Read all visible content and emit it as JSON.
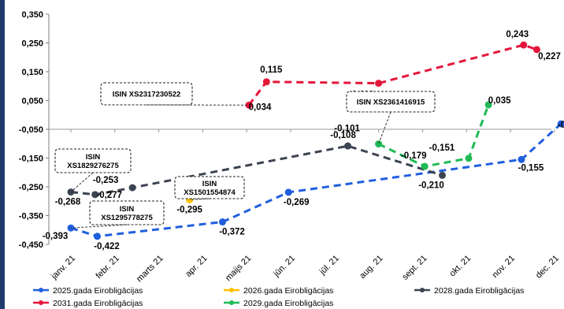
{
  "chart_data": {
    "type": "line",
    "categories": [
      "janv. 21",
      "febr. 21",
      "marts 21",
      "apr. 21",
      "maijs 21",
      "jūn. 21",
      "jūl. 21",
      "aug. 21",
      "sept. 21",
      "okt. 21",
      "nov. 21",
      "dec. 21"
    ],
    "ylim": [
      -0.45,
      0.35
    ],
    "yticks": [
      -0.45,
      -0.35,
      -0.25,
      -0.15,
      -0.05,
      0.05,
      0.15,
      0.25,
      0.35
    ],
    "ytick_labels": [
      "-0,450",
      "-0,350",
      "-0,250",
      "-0,150",
      "-0,050",
      "0,050",
      "0,150",
      "0,250",
      "0,350"
    ],
    "grid": false,
    "legend_position": "bottom",
    "series": [
      {
        "name": "2025.gada Eirobligācijas",
        "color": "#1f5fde",
        "points": [
          {
            "x": 0.0,
            "y": -0.393,
            "label": "-0,393"
          },
          {
            "x": 0.6,
            "y": -0.422,
            "label": "-0,422"
          },
          {
            "x": 3.45,
            "y": -0.372,
            "label": "-0,372"
          },
          {
            "x": 4.95,
            "y": -0.269,
            "label": "-0,269"
          },
          {
            "x": 10.25,
            "y": -0.155,
            "label": "-0,155"
          },
          {
            "x": 11.15,
            "y": -0.031,
            "label": "-0,031"
          }
        ]
      },
      {
        "name": "2026.gada Eirobligācijas",
        "color": "#ffc000",
        "points": [
          {
            "x": 2.7,
            "y": -0.295,
            "label": "-0,295"
          }
        ]
      },
      {
        "name": "2028.gada Eirobligācijas",
        "color": "#3d4451",
        "points": [
          {
            "x": 0.0,
            "y": -0.268,
            "label": "-0,268"
          },
          {
            "x": 0.55,
            "y": -0.277,
            "label": "-0,277"
          },
          {
            "x": 1.4,
            "y": -0.253,
            "label": "-0,253"
          },
          {
            "x": 6.3,
            "y": -0.108,
            "label": "-0,108"
          },
          {
            "x": 8.45,
            "y": -0.21,
            "label": "-0,210"
          }
        ]
      },
      {
        "name": "2031.gada Eirobligācijas",
        "color": "#e4163a",
        "points": [
          {
            "x": 4.05,
            "y": 0.034,
            "label": "0,034"
          },
          {
            "x": 4.45,
            "y": 0.115,
            "label": "0,115"
          },
          {
            "x": 7.0,
            "y": 0.11,
            "label": "0,110"
          },
          {
            "x": 10.3,
            "y": 0.243,
            "label": "0,243"
          },
          {
            "x": 10.6,
            "y": 0.227,
            "label": "0,227"
          }
        ]
      },
      {
        "name": "2029.gada Eirobligācijas",
        "color": "#1fba55",
        "points": [
          {
            "x": 7.0,
            "y": -0.101,
            "label": "-0,101"
          },
          {
            "x": 8.05,
            "y": -0.179,
            "label": "-0,179"
          },
          {
            "x": 9.05,
            "y": -0.151,
            "label": "-0,151"
          },
          {
            "x": 9.5,
            "y": 0.035,
            "label": "0,035"
          }
        ]
      }
    ],
    "annotations": [
      {
        "lines": [
          "ISIN XS2317230522"
        ],
        "series": "2031.gada Eirobligācijas",
        "point": 0
      },
      {
        "lines": [
          "ISIN XS2361416915"
        ],
        "series": "2029.gada Eirobligācijas",
        "point": 0
      },
      {
        "lines": [
          "ISIN",
          "XS1829276275"
        ],
        "series": "2028.gada Eirobligācijas",
        "point": 0
      },
      {
        "lines": [
          "ISIN",
          "XS1501554874"
        ],
        "series": "2026.gada Eirobligācijas",
        "point": 0
      },
      {
        "lines": [
          "ISIN",
          "XS1295778275"
        ],
        "series": "2025.gada Eirobligācijas",
        "point": 0
      }
    ]
  }
}
